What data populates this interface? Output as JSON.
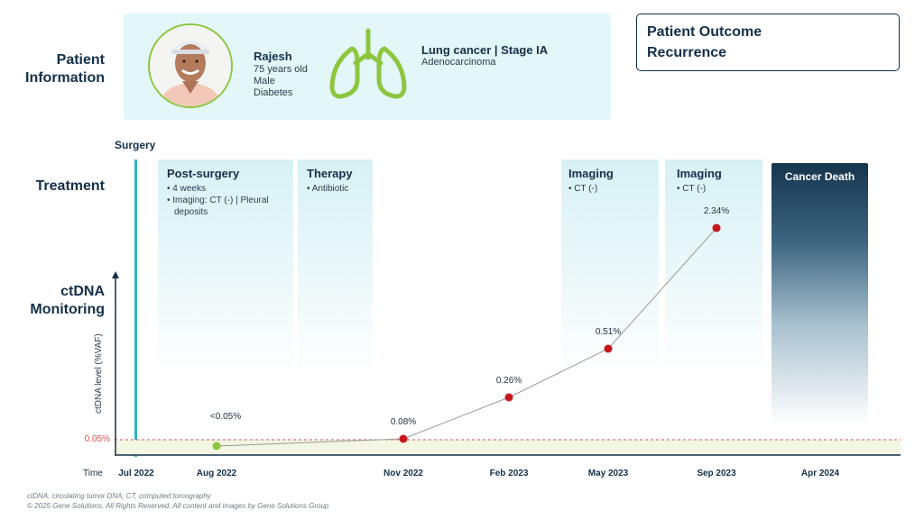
{
  "sections": {
    "patient_info": "Patient Information",
    "treatment": "Treatment",
    "ctdna_monitoring": "ctDNA Monitoring"
  },
  "patient": {
    "name": "Rajesh",
    "age": "75 years old",
    "sex": "Male",
    "condition": "Diabetes"
  },
  "cancer": {
    "title": "Lung cancer | Stage IA",
    "subtype": "Adenocarcinoma"
  },
  "outcome": {
    "line1": "Patient Outcome",
    "line2": "Recurrence"
  },
  "surgery_label": "Surgery",
  "treatments": [
    {
      "title": "Post-surgery",
      "bullets": [
        "4 weeks",
        "Imaging: CT (-) | Pleural",
        "deposits"
      ]
    },
    {
      "title": "Therapy",
      "bullets": [
        "Antibiotic"
      ]
    },
    {
      "title": "Imaging",
      "bullets": [
        "CT (-)"
      ]
    },
    {
      "title": "Imaging",
      "bullets": [
        "CT (-)"
      ]
    }
  ],
  "cancer_death": "Cancer Death",
  "colors": {
    "navy": "#14304a",
    "teal": "#2bb5c0",
    "green_marker": "#8cc63f",
    "red_marker": "#c8161d",
    "threshold_line": "#d9534f",
    "threshold_band": "#f3f6e1"
  },
  "chart_data": {
    "type": "line",
    "ylabel": "ctDNA level (%VAF)",
    "xlabel": "Time",
    "threshold": {
      "value": 0.05,
      "label": "0.05%"
    },
    "ylim": [
      0,
      2.6
    ],
    "points": [
      {
        "date": "Aug 2022",
        "value": 0.0,
        "label": "<0.05%",
        "status": "undetectable"
      },
      {
        "date": "Nov 2022",
        "value": 0.08,
        "label": "0.08%",
        "status": "detected"
      },
      {
        "date": "Feb 2023",
        "value": 0.26,
        "label": "0.26%",
        "status": "detected"
      },
      {
        "date": "May 2023",
        "value": 0.51,
        "label": "0.51%",
        "status": "detected"
      },
      {
        "date": "Sep 2023",
        "value": 2.34,
        "label": "2.34%",
        "status": "detected"
      }
    ],
    "ticks": [
      "Jul 2022",
      "Aug 2022",
      "Nov 2022",
      "Feb 2023",
      "May 2023",
      "Sep 2023",
      "Apr 2024"
    ]
  },
  "footnotes": {
    "line1": "ctDNA, circulating tumor DNA; CT, computed tomography",
    "line2": "© 2025 Gene Solutions. All Rights Reserved. All content and images by Gene Solutions Group"
  }
}
